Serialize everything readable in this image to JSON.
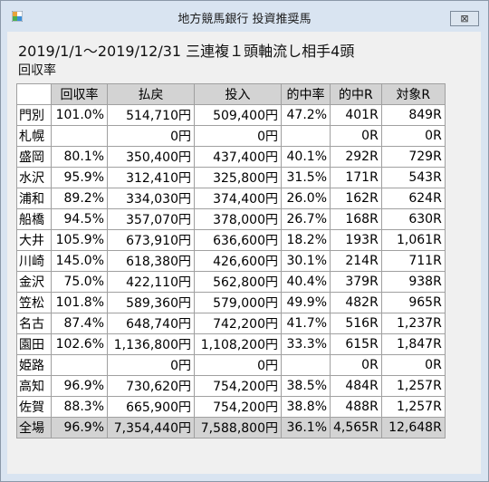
{
  "window": {
    "title": "地方競馬銀行 投資推奨馬",
    "close_glyph": "⊠"
  },
  "report": {
    "period": "2019/1/1〜2019/12/31 三連複１頭軸流し相手4頭",
    "subtitle": "回収率"
  },
  "table": {
    "headers": [
      "",
      "回収率",
      "払戻",
      "投入",
      "的中率",
      "的中R",
      "対象R"
    ],
    "rows": [
      [
        "門別",
        "101.0%",
        "514,710円",
        "509,400円",
        "47.2%",
        "401R",
        "849R"
      ],
      [
        "札幌",
        "",
        "0円",
        "0円",
        "",
        "0R",
        "0R"
      ],
      [
        "盛岡",
        "80.1%",
        "350,400円",
        "437,400円",
        "40.1%",
        "292R",
        "729R"
      ],
      [
        "水沢",
        "95.9%",
        "312,410円",
        "325,800円",
        "31.5%",
        "171R",
        "543R"
      ],
      [
        "浦和",
        "89.2%",
        "334,030円",
        "374,400円",
        "26.0%",
        "162R",
        "624R"
      ],
      [
        "船橋",
        "94.5%",
        "357,070円",
        "378,000円",
        "26.7%",
        "168R",
        "630R"
      ],
      [
        "大井",
        "105.9%",
        "673,910円",
        "636,600円",
        "18.2%",
        "193R",
        "1,061R"
      ],
      [
        "川崎",
        "145.0%",
        "618,380円",
        "426,600円",
        "30.1%",
        "214R",
        "711R"
      ],
      [
        "金沢",
        "75.0%",
        "422,110円",
        "562,800円",
        "40.4%",
        "379R",
        "938R"
      ],
      [
        "笠松",
        "101.8%",
        "589,360円",
        "579,000円",
        "49.9%",
        "482R",
        "965R"
      ],
      [
        "名古",
        "87.4%",
        "648,740円",
        "742,200円",
        "41.7%",
        "516R",
        "1,237R"
      ],
      [
        "園田",
        "102.6%",
        "1,136,800円",
        "1,108,200円",
        "33.3%",
        "615R",
        "1,847R"
      ],
      [
        "姫路",
        "",
        "0円",
        "0円",
        "",
        "0R",
        "0R"
      ],
      [
        "高知",
        "96.9%",
        "730,620円",
        "754,200円",
        "38.5%",
        "484R",
        "1,257R"
      ],
      [
        "佐賀",
        "88.3%",
        "665,900円",
        "754,200円",
        "38.8%",
        "488R",
        "1,257R"
      ]
    ],
    "total": [
      "全場",
      "96.9%",
      "7,354,440円",
      "7,588,800円",
      "36.1%",
      "4,565R",
      "12,648R"
    ]
  }
}
